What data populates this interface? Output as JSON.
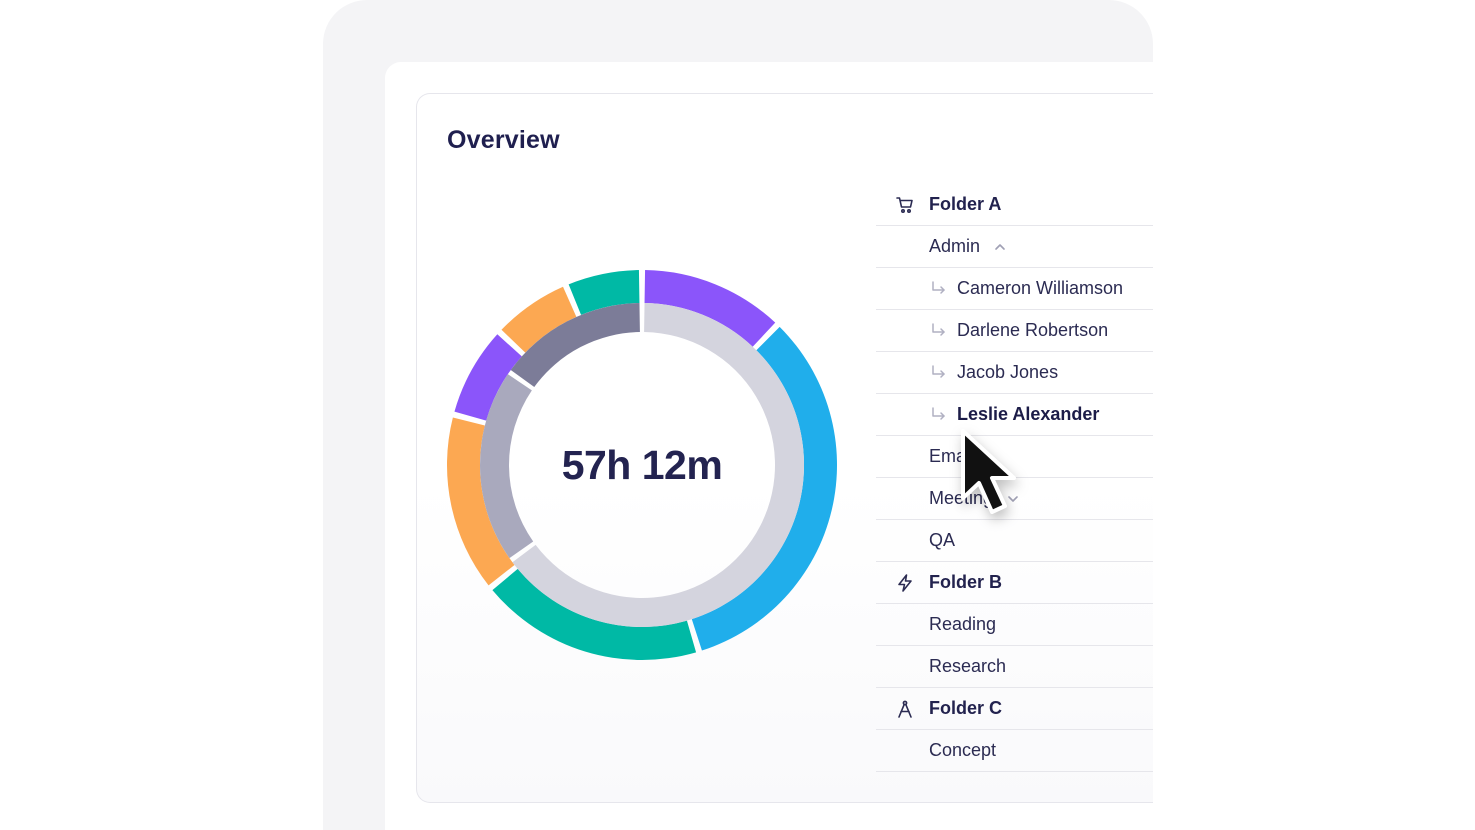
{
  "title": "Overview",
  "total_time": "57h 12m",
  "tree": [
    {
      "label": "Folder A",
      "type": "folder",
      "icon": "cart-icon"
    },
    {
      "label": "Admin",
      "type": "item",
      "expanded": true
    },
    {
      "label": "Cameron Williamson",
      "type": "sub"
    },
    {
      "label": "Darlene Robertson",
      "type": "sub"
    },
    {
      "label": "Jacob Jones",
      "type": "sub"
    },
    {
      "label": "Leslie Alexander",
      "type": "sub",
      "hovered": true
    },
    {
      "label": "Email",
      "type": "item"
    },
    {
      "label": "Meeting",
      "type": "item",
      "expanded": false
    },
    {
      "label": "QA",
      "type": "item"
    },
    {
      "label": "Folder B",
      "type": "folder",
      "icon": "lightning-icon"
    },
    {
      "label": "Reading",
      "type": "item"
    },
    {
      "label": "Research",
      "type": "item"
    },
    {
      "label": "Folder C",
      "type": "folder",
      "icon": "compass-icon"
    },
    {
      "label": "Concept",
      "type": "item"
    }
  ],
  "colors": {
    "purple": "#8b55fa",
    "blue": "#20aeeb",
    "teal": "#00b9a5",
    "orange": "#fca852",
    "slate_dark": "#7c7c98",
    "slate_mid": "#a9a9bd",
    "slate_light": "#d4d4de"
  }
}
